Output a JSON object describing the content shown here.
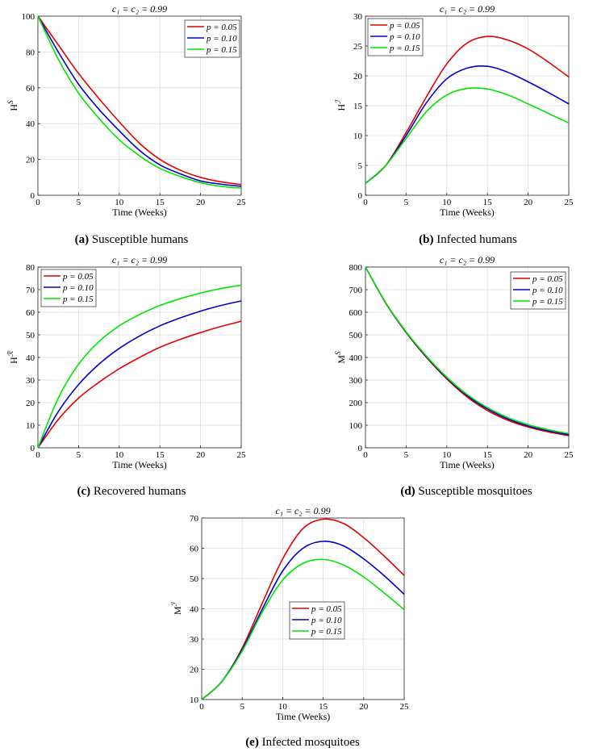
{
  "figure": {
    "captions": [
      {
        "label": "(a)",
        "text": "Susceptible humans"
      },
      {
        "label": "(b)",
        "text": "Infected humans"
      },
      {
        "label": "(c)",
        "text": "Recovered humans"
      },
      {
        "label": "(d)",
        "text": "Susceptible mosquitoes"
      },
      {
        "label": "(e)",
        "text": "Infected mosquitoes"
      }
    ]
  },
  "colors": {
    "p005": "#e60000",
    "p010": "#0000cc",
    "p015": "#00e600",
    "grid": "#dcdcdc"
  },
  "chart_data": [
    {
      "id": "a",
      "type": "line",
      "title": "c₁ = c₂ = 0.99",
      "xlabel": "Time (Weeks)",
      "ylabel_base": "H",
      "ylabel_sup": "S",
      "xlim": [
        0,
        25
      ],
      "ylim": [
        0,
        100
      ],
      "xticks": [
        0,
        5,
        10,
        15,
        20,
        25
      ],
      "yticks": [
        0,
        20,
        40,
        60,
        80,
        100
      ],
      "legend_loc": "top-right",
      "x": [
        0,
        2.5,
        5,
        7.5,
        10,
        12.5,
        15,
        17.5,
        20,
        22.5,
        25
      ],
      "series": [
        {
          "name": "p = 0.05",
          "color": "#e60000",
          "values": [
            100,
            84,
            68,
            54,
            41,
            29,
            20,
            14,
            10,
            7.5,
            6
          ]
        },
        {
          "name": "p = 0.10",
          "color": "#0000cc",
          "values": [
            100,
            80,
            62,
            48,
            36,
            25,
            17,
            12,
            8,
            6.2,
            5
          ]
        },
        {
          "name": "p = 0.15",
          "color": "#00e600",
          "values": [
            100,
            76,
            57,
            43,
            31,
            22,
            15,
            10.5,
            7,
            5,
            4
          ]
        }
      ]
    },
    {
      "id": "b",
      "type": "line",
      "title": "c₁ = c₂ = 0.99",
      "xlabel": "Time (Weeks)",
      "ylabel_base": "H",
      "ylabel_sup": "ℐ",
      "xlim": [
        0,
        25
      ],
      "ylim": [
        0,
        30
      ],
      "xticks": [
        0,
        5,
        10,
        15,
        20,
        25
      ],
      "yticks": [
        0,
        5,
        10,
        15,
        20,
        25,
        30
      ],
      "legend_loc": "top-left",
      "x": [
        0,
        2.5,
        5,
        7.5,
        10,
        12.5,
        15,
        17.5,
        20,
        22.5,
        25
      ],
      "series": [
        {
          "name": "p = 0.05",
          "color": "#e60000",
          "values": [
            2,
            5,
            10.5,
            16.5,
            22,
            25.5,
            26.6,
            26,
            24.5,
            22.3,
            19.8
          ]
        },
        {
          "name": "p = 0.10",
          "color": "#0000cc",
          "values": [
            2,
            5,
            10,
            15.5,
            19.5,
            21.3,
            21.6,
            20.6,
            19,
            17.2,
            15.3
          ]
        },
        {
          "name": "p = 0.15",
          "color": "#00e600",
          "values": [
            2,
            5,
            9.5,
            14,
            16.8,
            17.9,
            17.8,
            16.8,
            15.3,
            13.7,
            12.1
          ]
        }
      ]
    },
    {
      "id": "c",
      "type": "line",
      "title": "c₁ = c₂ = 0.99",
      "xlabel": "Time (Weeks)",
      "ylabel_base": "H",
      "ylabel_sup": "ℛ",
      "xlim": [
        0,
        25
      ],
      "ylim": [
        0,
        80
      ],
      "xticks": [
        0,
        5,
        10,
        15,
        20,
        25
      ],
      "yticks": [
        0,
        10,
        20,
        30,
        40,
        50,
        60,
        70,
        80
      ],
      "legend_loc": "top-left",
      "x": [
        0,
        2.5,
        5,
        7.5,
        10,
        12.5,
        15,
        17.5,
        20,
        22.5,
        25
      ],
      "series": [
        {
          "name": "p = 0.05",
          "color": "#e60000",
          "values": [
            0,
            12.5,
            22,
            29,
            35,
            40,
            44.5,
            48,
            51,
            53.7,
            56
          ]
        },
        {
          "name": "p = 0.10",
          "color": "#0000cc",
          "values": [
            0,
            16,
            28,
            37,
            44,
            49.5,
            54,
            57.5,
            60.5,
            63,
            65
          ]
        },
        {
          "name": "p = 0.15",
          "color": "#00e600",
          "values": [
            0,
            22,
            37,
            47,
            54,
            59,
            63,
            66,
            68.5,
            70.5,
            72
          ]
        }
      ]
    },
    {
      "id": "d",
      "type": "line",
      "title": "c₁ = c₂ = 0.99",
      "xlabel": "Time (Weeks)",
      "ylabel_base": "M",
      "ylabel_sup": "S",
      "xlim": [
        0,
        25
      ],
      "ylim": [
        0,
        800
      ],
      "xticks": [
        0,
        5,
        10,
        15,
        20,
        25
      ],
      "yticks": [
        0,
        100,
        200,
        300,
        400,
        500,
        600,
        700,
        800
      ],
      "legend_loc": "top-right",
      "x": [
        0,
        2.5,
        5,
        7.5,
        10,
        12.5,
        15,
        17.5,
        20,
        22.5,
        25
      ],
      "series": [
        {
          "name": "p = 0.05",
          "color": "#e60000",
          "values": [
            800,
            640,
            510,
            400,
            305,
            225,
            165,
            122,
            92,
            70,
            54
          ]
        },
        {
          "name": "p = 0.10",
          "color": "#0000cc",
          "values": [
            800,
            641,
            512,
            403,
            309,
            231,
            172,
            128,
            97,
            75,
            58
          ]
        },
        {
          "name": "p = 0.15",
          "color": "#00e600",
          "values": [
            800,
            642,
            514,
            406,
            313,
            236,
            178,
            134,
            102,
            80,
            63
          ]
        }
      ]
    },
    {
      "id": "e",
      "type": "line",
      "title": "c₁ = c₂ = 0.99",
      "xlabel": "Time (Weeks)",
      "ylabel_base": "M",
      "ylabel_sup": "ℐ",
      "xlim": [
        0,
        25
      ],
      "ylim": [
        10,
        70
      ],
      "xticks": [
        0,
        5,
        10,
        15,
        20,
        25
      ],
      "yticks": [
        10,
        20,
        30,
        40,
        50,
        60,
        70
      ],
      "legend_loc": "center-right",
      "x": [
        0,
        2.5,
        5,
        7.5,
        10,
        12.5,
        15,
        17.5,
        20,
        22.5,
        25
      ],
      "series": [
        {
          "name": "p = 0.05",
          "color": "#e60000",
          "values": [
            10,
            16,
            27,
            42,
            56.5,
            66.5,
            69.6,
            68.2,
            63.5,
            57.5,
            51
          ]
        },
        {
          "name": "p = 0.10",
          "color": "#0000cc",
          "values": [
            10,
            16,
            26.5,
            40,
            52.5,
            60,
            62.3,
            60.8,
            56.5,
            51,
            44.8
          ]
        },
        {
          "name": "p = 0.15",
          "color": "#00e600",
          "values": [
            10,
            16,
            26,
            39,
            49.5,
            55,
            56.3,
            54.5,
            50.5,
            45.3,
            39.7
          ]
        }
      ]
    }
  ]
}
